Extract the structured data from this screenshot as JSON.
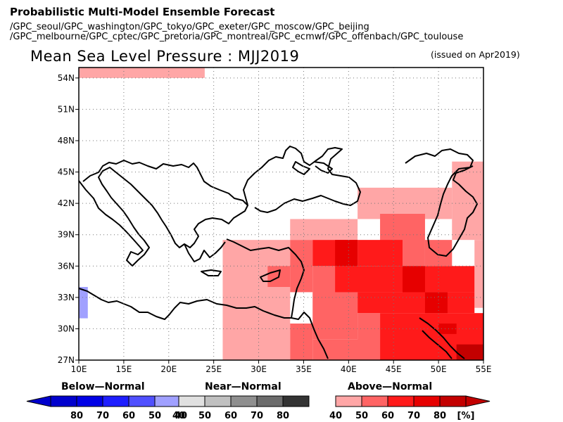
{
  "header": {
    "title": "Probabilistic Multi-Model Ensemble Forecast",
    "centers_line1": "/GPC_seoul/GPC_washington/GPC_tokyo/GPC_exeter/GPC_moscow/GPC_beijing",
    "centers_line2": "/GPC_melbourne/GPC_cptec/GPC_pretoria/GPC_montreal/GPC_ecmwf/GPC_offenbach/GPC_toulouse",
    "subtitle": "Mean Sea Level Pressure : MJJ2019",
    "issued": "(issued on Apr2019)"
  },
  "map": {
    "lon_range": [
      10,
      55
    ],
    "lat_range": [
      27,
      55
    ],
    "x_ticks": [
      "10E",
      "15E",
      "20E",
      "25E",
      "30E",
      "35E",
      "40E",
      "45E",
      "50E",
      "55E"
    ],
    "y_ticks": [
      "27N",
      "30N",
      "33N",
      "36N",
      "39N",
      "42N",
      "45N",
      "48N",
      "51N",
      "54N"
    ],
    "grid": "dotted",
    "cell_size_deg": 2.5,
    "colors": {
      "above40": "#ffa6a6",
      "above50": "#ff6464",
      "above60": "#ff1a1a",
      "above70": "#e60000",
      "above80": "#c30000",
      "below40": "#a0a0ff"
    },
    "cells": [
      {
        "lon": [
          10,
          24
        ],
        "lat": [
          54,
          55
        ],
        "cat": "above40"
      },
      {
        "lon": [
          10,
          11
        ],
        "lat": [
          31,
          34
        ],
        "cat": "below40"
      },
      {
        "lon": [
          26,
          33.5
        ],
        "lat": [
          27,
          38.5
        ],
        "cat": "above40"
      },
      {
        "lon": [
          33.5,
          41
        ],
        "lat": [
          38.5,
          40.5
        ],
        "cat": "above40"
      },
      {
        "lon": [
          41,
          51.5
        ],
        "lat": [
          40.5,
          43.5
        ],
        "cat": "above40"
      },
      {
        "lon": [
          51.5,
          55
        ],
        "lat": [
          41,
          46
        ],
        "cat": "above40"
      },
      {
        "lon": [
          51.5,
          55
        ],
        "lat": [
          38.5,
          41
        ],
        "cat": "above40"
      },
      {
        "lon": [
          54,
          55
        ],
        "lat": [
          32,
          38.5
        ],
        "cat": "above40"
      },
      {
        "lon": [
          33.5,
          36
        ],
        "lat": [
          33.5,
          38.5
        ],
        "cat": "above50"
      },
      {
        "lon": [
          31,
          33.5
        ],
        "lat": [
          34,
          36
        ],
        "cat": "above50"
      },
      {
        "lon": [
          36,
          41
        ],
        "lat": [
          29,
          36
        ],
        "cat": "above50"
      },
      {
        "lon": [
          33.5,
          36
        ],
        "lat": [
          27,
          30.5
        ],
        "cat": "above50"
      },
      {
        "lon": [
          36,
          43.5
        ],
        "lat": [
          27,
          29
        ],
        "cat": "above50"
      },
      {
        "lon": [
          41,
          43.5
        ],
        "lat": [
          27,
          31.5
        ],
        "cat": "above50"
      },
      {
        "lon": [
          43.5,
          48.5
        ],
        "lat": [
          36,
          41
        ],
        "cat": "above50"
      },
      {
        "lon": [
          48.5,
          51.5
        ],
        "lat": [
          36,
          38.5
        ],
        "cat": "above50"
      },
      {
        "lon": [
          36,
          41
        ],
        "lat": [
          36,
          38.5
        ],
        "cat": "above60"
      },
      {
        "lon": [
          41,
          46
        ],
        "lat": [
          36,
          38.5
        ],
        "cat": "above60"
      },
      {
        "lon": [
          38.5,
          54
        ],
        "lat": [
          33.5,
          36
        ],
        "cat": "above60"
      },
      {
        "lon": [
          41,
          54
        ],
        "lat": [
          31.5,
          33.5
        ],
        "cat": "above60"
      },
      {
        "lon": [
          43.5,
          55
        ],
        "lat": [
          27,
          31.5
        ],
        "cat": "above60"
      },
      {
        "lon": [
          38.5,
          41
        ],
        "lat": [
          36,
          38.5
        ],
        "cat": "above70"
      },
      {
        "lon": [
          46,
          48.5
        ],
        "lat": [
          33.5,
          36
        ],
        "cat": "above70"
      },
      {
        "lon": [
          48.5,
          51
        ],
        "lat": [
          31.5,
          33.5
        ],
        "cat": "above70"
      },
      {
        "lon": [
          50,
          52
        ],
        "lat": [
          29.5,
          30.5
        ],
        "cat": "above70"
      },
      {
        "lon": [
          52,
          55
        ],
        "lat": [
          27,
          28.5
        ],
        "cat": "above80"
      }
    ]
  },
  "legend": {
    "below": {
      "title": "Below—Normal",
      "labels": [
        "80",
        "70",
        "60",
        "50",
        "40"
      ],
      "colors": [
        "#0000cd",
        "#0000e6",
        "#1e1eff",
        "#5050ff",
        "#a0a0ff"
      ]
    },
    "near": {
      "title": "Near—Normal",
      "labels": [
        "40",
        "50",
        "60",
        "70",
        "80"
      ],
      "colors": [
        "#e0e0e0",
        "#c0c0c0",
        "#8f8f8f",
        "#6c6c6c",
        "#333333"
      ]
    },
    "above": {
      "title": "Above—Normal",
      "labels": [
        "40",
        "50",
        "60",
        "70",
        "80"
      ],
      "colors": [
        "#ffa6a6",
        "#ff6464",
        "#ff1a1a",
        "#e60000",
        "#c30000"
      ]
    },
    "unit": "[%]"
  }
}
